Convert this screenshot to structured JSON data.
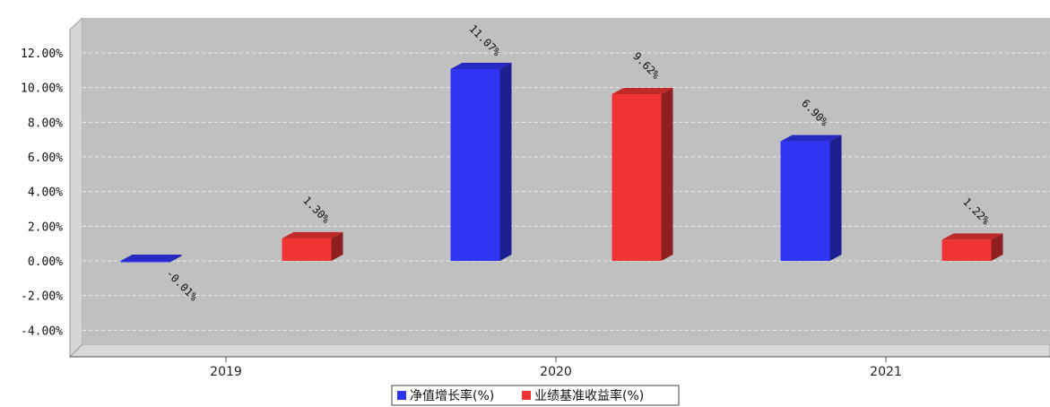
{
  "title": "",
  "chart_data": {
    "type": "bar",
    "title": "",
    "xlabel": "",
    "ylabel": "",
    "categories": [
      "2019",
      "2020",
      "2021"
    ],
    "series": [
      {
        "name": "净值增长率(%)",
        "values": [
          -0.01,
          11.07,
          6.9
        ],
        "labels": [
          "-0.01%",
          "11.07%",
          "6.90%"
        ]
      },
      {
        "name": "业绩基准收益率(%)",
        "values": [
          1.3,
          9.62,
          1.22
        ],
        "labels": [
          "1.30%",
          "9.62%",
          "1.22%"
        ]
      }
    ],
    "ylim": [
      -4,
      12
    ],
    "yticks": [
      -4,
      -2,
      0,
      2,
      4,
      6,
      8,
      10,
      12
    ],
    "ytick_labels": [
      "-4.00%",
      "-2.00%",
      "0.00%",
      "2.00%",
      "4.00%",
      "6.00%",
      "8.00%",
      "10.00%",
      "12.00%"
    ],
    "grid": true,
    "legend": "bottom-center",
    "colors": {
      "series_1": "#2f35f2",
      "series_2": "#f03434",
      "plot_bg": "#c0c0c0",
      "wall": "#d3d3d3"
    }
  }
}
